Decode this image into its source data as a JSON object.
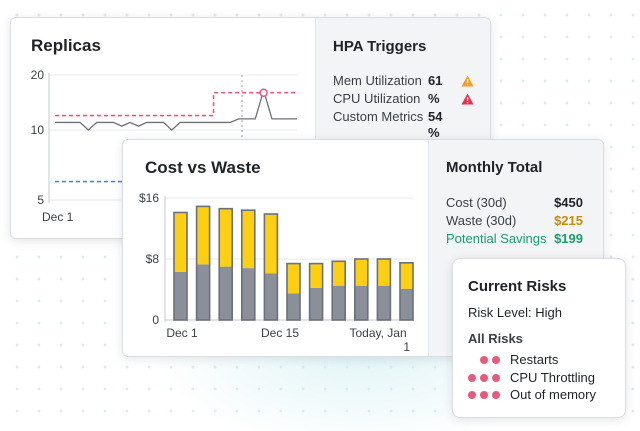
{
  "replicas_card": {
    "title": "Replicas",
    "y_ticks": [
      "20",
      "10",
      "5"
    ],
    "x_tick": "Dec 1"
  },
  "hpa": {
    "title": "HPA Triggers",
    "rows": [
      {
        "label": "Mem Utilization",
        "value": "61",
        "value2": "",
        "icon": "warning-triangle-icon",
        "icon_color": "#f0a020"
      },
      {
        "label": "CPU Utilization",
        "value": "%",
        "value2": "",
        "icon": "alert-triangle-icon",
        "icon_color": "#e0334f"
      },
      {
        "label": "Custom Metrics",
        "value": "54",
        "value2": "%",
        "icon": "",
        "icon_color": ""
      }
    ]
  },
  "cost_card": {
    "title": "Cost vs Waste",
    "colors": {
      "cost": "#8a8f99",
      "waste": "#fccf12",
      "outline": "#6b7079"
    }
  },
  "monthly": {
    "title": "Monthly Total",
    "rows": [
      {
        "label": "Cost (30d)",
        "value": "$450",
        "color": "#1f2328"
      },
      {
        "label": "Waste (30d)",
        "value": "$215",
        "color": "#c98e00"
      },
      {
        "label": "Potential Savings",
        "value": "$199",
        "color": "#1a9e6e"
      }
    ]
  },
  "risks": {
    "title": "Current Risks",
    "level_label": "Risk Level:",
    "level_value": "High",
    "all_label": "All Risks",
    "dot_color": "#e85a7c",
    "items": [
      {
        "label": "Restarts",
        "dots": 2
      },
      {
        "label": "CPU Throttling",
        "dots": 3
      },
      {
        "label": "Out of memory",
        "dots": 3
      }
    ]
  },
  "chart_data": [
    {
      "type": "line",
      "title": "Replicas",
      "y_ticks": [
        20,
        10,
        5
      ],
      "x_ticks": [
        "Dec 1"
      ],
      "x": [
        0,
        1,
        2,
        3,
        4,
        5,
        6,
        7,
        8,
        9,
        10,
        11,
        12,
        13,
        14,
        15,
        16,
        17,
        18,
        19,
        20,
        21,
        22,
        23,
        24,
        25,
        26,
        27,
        28,
        29
      ],
      "series": [
        {
          "style": "solid",
          "color": "#6b7079",
          "values": [
            11,
            11,
            11,
            11,
            10,
            11,
            11,
            11,
            10.5,
            11,
            10.5,
            11,
            11,
            11,
            10,
            11,
            11,
            11,
            11,
            11,
            11,
            11,
            11.5,
            11.5,
            11.5,
            16.5,
            11.5,
            11.5,
            11.5,
            11.5
          ]
        },
        {
          "style": "dashed",
          "color": "#e85a7c",
          "values": [
            12,
            12,
            12,
            12,
            12,
            12,
            12,
            12,
            12,
            12,
            12,
            12,
            12,
            12,
            12,
            12,
            12,
            12,
            12,
            16,
            16,
            16,
            16,
            16,
            16,
            16,
            16,
            16,
            16,
            16
          ]
        },
        {
          "style": "dashed",
          "color": "#3a8fd6",
          "values": [
            6,
            6,
            6,
            6,
            6,
            6,
            6,
            6,
            6,
            6,
            6,
            6,
            6,
            6,
            6,
            6,
            6,
            6,
            6,
            6,
            6,
            6,
            6,
            6,
            6,
            6,
            6,
            6,
            6,
            6
          ]
        }
      ],
      "marker_index": 25
    },
    {
      "type": "bar",
      "title": "Cost vs Waste",
      "y_ticks": [
        "0",
        "$8",
        "$16"
      ],
      "ylim": [
        0,
        16
      ],
      "x_ticks": [
        "Dec 1",
        "Dec 15",
        "Today, Jan 1"
      ],
      "categories": [
        "1",
        "2",
        "3",
        "4",
        "5",
        "6",
        "7",
        "8",
        "9",
        "10",
        "11"
      ],
      "series": [
        {
          "name": "Cost",
          "values": [
            6.3,
            7.3,
            7,
            6.8,
            6.1,
            3.5,
            4.2,
            4.5,
            4.5,
            4.5,
            4.1
          ]
        },
        {
          "name": "Waste",
          "values": [
            7.8,
            7.6,
            7.6,
            7.6,
            7.8,
            3.9,
            3.2,
            3.2,
            3.5,
            3.5,
            3.4
          ]
        }
      ]
    }
  ]
}
